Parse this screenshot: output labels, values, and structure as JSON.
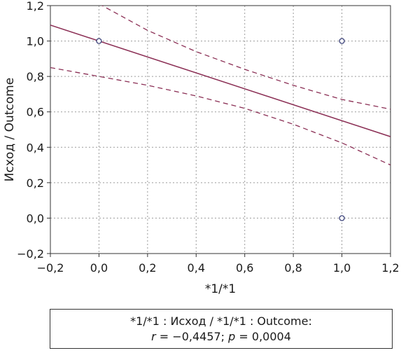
{
  "chart_data": {
    "type": "scatter",
    "xlabel": "*1/*1",
    "ylabel": "Исход / Outcome",
    "xlim": [
      -0.2,
      1.2
    ],
    "ylim": [
      -0.2,
      1.2
    ],
    "x_ticks": [
      "−0,2",
      "0,0",
      "0,2",
      "0,4",
      "0,6",
      "0,8",
      "1,0",
      "1,2"
    ],
    "y_ticks": [
      "−0,2",
      "0,0",
      "0,2",
      "0,4",
      "0,6",
      "0,8",
      "1,0",
      "1,2"
    ],
    "grid": true,
    "points": [
      {
        "x": 0.0,
        "y": 1.0
      },
      {
        "x": 1.0,
        "y": 1.0
      },
      {
        "x": 1.0,
        "y": 0.0
      }
    ],
    "regression_line": {
      "x": [
        -0.2,
        1.2
      ],
      "y": [
        1.09,
        0.46
      ]
    },
    "confidence_upper": {
      "x": [
        0.0,
        0.2,
        0.4,
        0.6,
        0.8,
        1.0,
        1.2
      ],
      "y": [
        1.21,
        1.06,
        0.94,
        0.84,
        0.75,
        0.67,
        0.615
      ]
    },
    "confidence_lower": {
      "x": [
        -0.2,
        0.0,
        0.2,
        0.4,
        0.6,
        0.8,
        1.0,
        1.2
      ],
      "y": [
        0.85,
        0.8,
        0.75,
        0.69,
        0.62,
        0.53,
        0.425,
        0.3
      ]
    },
    "colors": {
      "fit": "#8b2f55",
      "points": "#2d3470",
      "grid": "#9a9a9a"
    }
  },
  "caption": {
    "line1": "*1/*1 : Исход / *1/*1 : Outcome:",
    "r_symbol": "r",
    "r_text": " = −0,4457; ",
    "p_symbol": "p",
    "p_text": " = 0,0004"
  }
}
